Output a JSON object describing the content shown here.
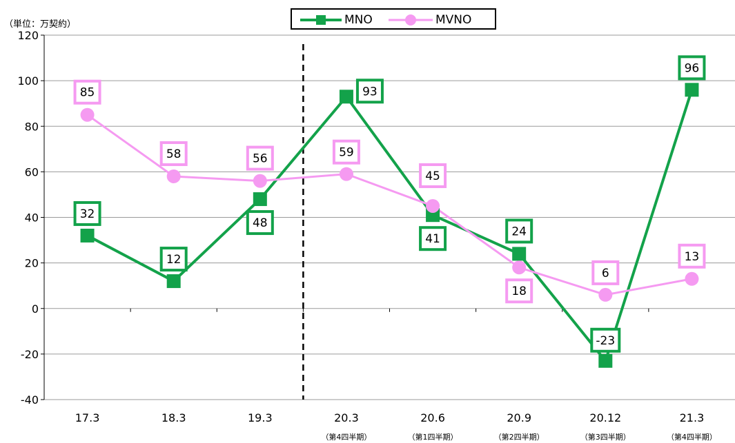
{
  "unit_label": "（単位：万契約）",
  "chart_data": {
    "type": "line",
    "categories": [
      "17.3",
      "18.3",
      "19.3",
      "20.3",
      "20.6",
      "20.9",
      "20.12",
      "21.3"
    ],
    "sublabels": [
      "",
      "",
      "",
      "（第4四半期）",
      "（第1四半期）",
      "（第2四半期）",
      "（第3四半期）",
      "（第4四半期）"
    ],
    "series": [
      {
        "name": "MNO",
        "color": "#13a24a",
        "marker": "square",
        "values": [
          32,
          12,
          48,
          93,
          41,
          24,
          -23,
          96
        ],
        "labels": [
          "32",
          "12",
          "48",
          "93",
          "41",
          "24",
          "-23",
          "96"
        ]
      },
      {
        "name": "MVNO",
        "color": "#f59af1",
        "marker": "circle",
        "values": [
          85,
          58,
          56,
          59,
          45,
          18,
          6,
          13
        ],
        "labels": [
          "85",
          "58",
          "56",
          "59",
          "45",
          "18",
          "6",
          "13"
        ]
      }
    ],
    "ylim": [
      -40,
      120
    ],
    "yticks": [
      "-40",
      "-20",
      "0",
      "20",
      "40",
      "60",
      "80",
      "100",
      "120"
    ],
    "grid": true,
    "legend_position": "top-center",
    "divider_after_category": "19.3"
  }
}
